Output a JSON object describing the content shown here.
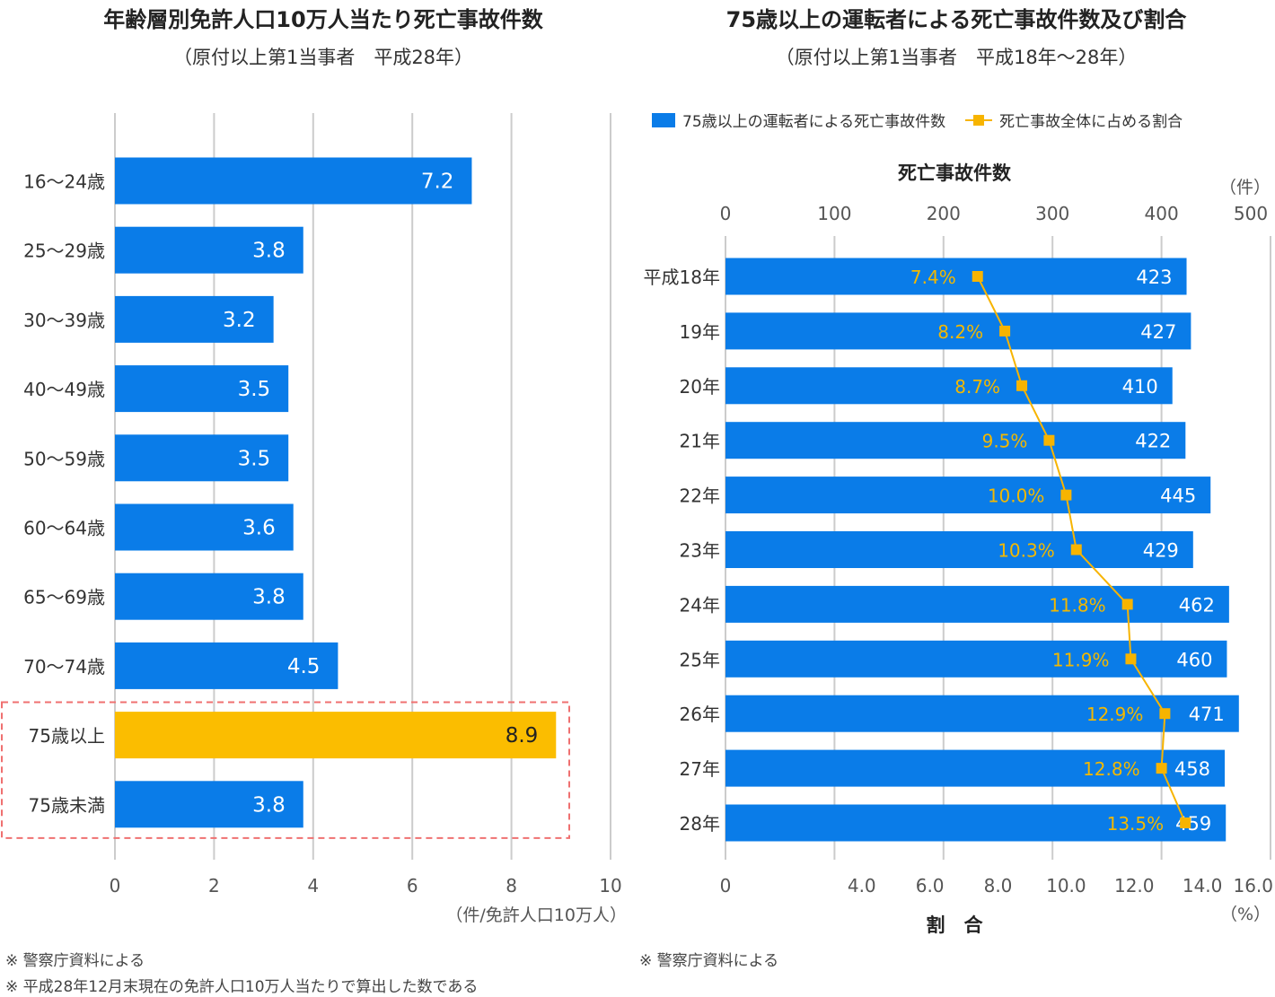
{
  "left_panel": {
    "title": "年齢層別免許人口10万人当たり死亡事故件数",
    "subtitle": "（原付以上第1当事者　平成28年）",
    "notes": [
      "※ 警察庁資料による",
      "※ 平成28年12月末現在の免許人口10万人当たりで算出した数である"
    ]
  },
  "right_panel": {
    "title": "75歳以上の運転者による死亡事故件数及び割合",
    "subtitle": "（原付以上第1当事者　平成18年〜28年）",
    "notes": [
      "※ 警察庁資料による"
    ],
    "legend": {
      "bar_label": "75歳以上の運転者による死亡事故件数",
      "line_label": "死亡事故全体に占める割合"
    }
  },
  "colors": {
    "bar": "#0a7ce8",
    "highlight": "#fbbd00",
    "line": "#f7b400",
    "dashed_box": "#ef7070",
    "grid": "#cccccc",
    "text": "#333333"
  },
  "chart_data": [
    {
      "type": "bar",
      "orientation": "horizontal",
      "title": "年齢層別免許人口10万人当たり死亡事故件数",
      "subtitle": "（原付以上第1当事者　平成28年）",
      "categories": [
        "16〜24歳",
        "25〜29歳",
        "30〜39歳",
        "40〜49歳",
        "50〜59歳",
        "60〜64歳",
        "65〜69歳",
        "70〜74歳",
        "75歳以上",
        "75歳未満"
      ],
      "values": [
        7.2,
        3.8,
        3.2,
        3.5,
        3.5,
        3.6,
        3.8,
        4.5,
        8.9,
        3.8
      ],
      "value_labels": [
        "7.2",
        "3.8",
        "3.2",
        "3.5",
        "3.5",
        "3.6",
        "3.8",
        "4.5",
        "8.9",
        "3.8"
      ],
      "highlight_category": "75歳以上",
      "boxed_categories": [
        "75歳以上",
        "75歳未満"
      ],
      "xlim": [
        0,
        10
      ],
      "xticks": [
        0,
        2,
        4,
        6,
        8,
        10
      ],
      "xtick_labels": [
        "0",
        "2",
        "4",
        "6",
        "8",
        "10"
      ],
      "xlabel": "（件/免許人口10万人）",
      "grid": true
    },
    {
      "type": "bar",
      "orientation": "horizontal",
      "title": "75歳以上の運転者による死亡事故件数及び割合",
      "subtitle": "（原付以上第1当事者　平成18年〜28年）",
      "categories": [
        "平成18年",
        "19年",
        "20年",
        "21年",
        "22年",
        "23年",
        "24年",
        "25年",
        "26年",
        "27年",
        "28年"
      ],
      "series": [
        {
          "name": "75歳以上の運転者による死亡事故件数",
          "type": "bar",
          "axis": "top",
          "values": [
            423,
            427,
            410,
            422,
            445,
            429,
            462,
            460,
            471,
            458,
            459
          ],
          "value_labels": [
            "423",
            "427",
            "410",
            "422",
            "445",
            "429",
            "462",
            "460",
            "471",
            "458",
            "459"
          ]
        },
        {
          "name": "死亡事故全体に占める割合",
          "type": "line",
          "axis": "bottom",
          "values": [
            7.4,
            8.2,
            8.7,
            9.5,
            10.0,
            10.3,
            11.8,
            11.9,
            12.9,
            12.8,
            13.5
          ],
          "value_labels": [
            "7.4%",
            "8.2%",
            "8.7%",
            "9.5%",
            "10.0%",
            "10.3%",
            "11.8%",
            "11.9%",
            "12.9%",
            "12.8%",
            "13.5%"
          ]
        }
      ],
      "top_axis": {
        "label": "死亡事故件数",
        "unit": "（件）",
        "range": [
          0,
          500
        ],
        "ticks": [
          0,
          100,
          200,
          300,
          400,
          500
        ],
        "tick_labels": [
          "0",
          "100",
          "200",
          "300",
          "400",
          "500"
        ]
      },
      "bottom_axis": {
        "label": "割　合",
        "unit": "（%）",
        "range": [
          0,
          16
        ],
        "ticks": [
          0,
          4,
          6,
          8,
          10,
          12,
          14,
          16
        ],
        "tick_labels": [
          "0",
          "4.0",
          "6.0",
          "8.0",
          "10.0",
          "12.0",
          "14.0",
          "16.0"
        ]
      },
      "legend_position": "top-right",
      "grid": true
    }
  ]
}
